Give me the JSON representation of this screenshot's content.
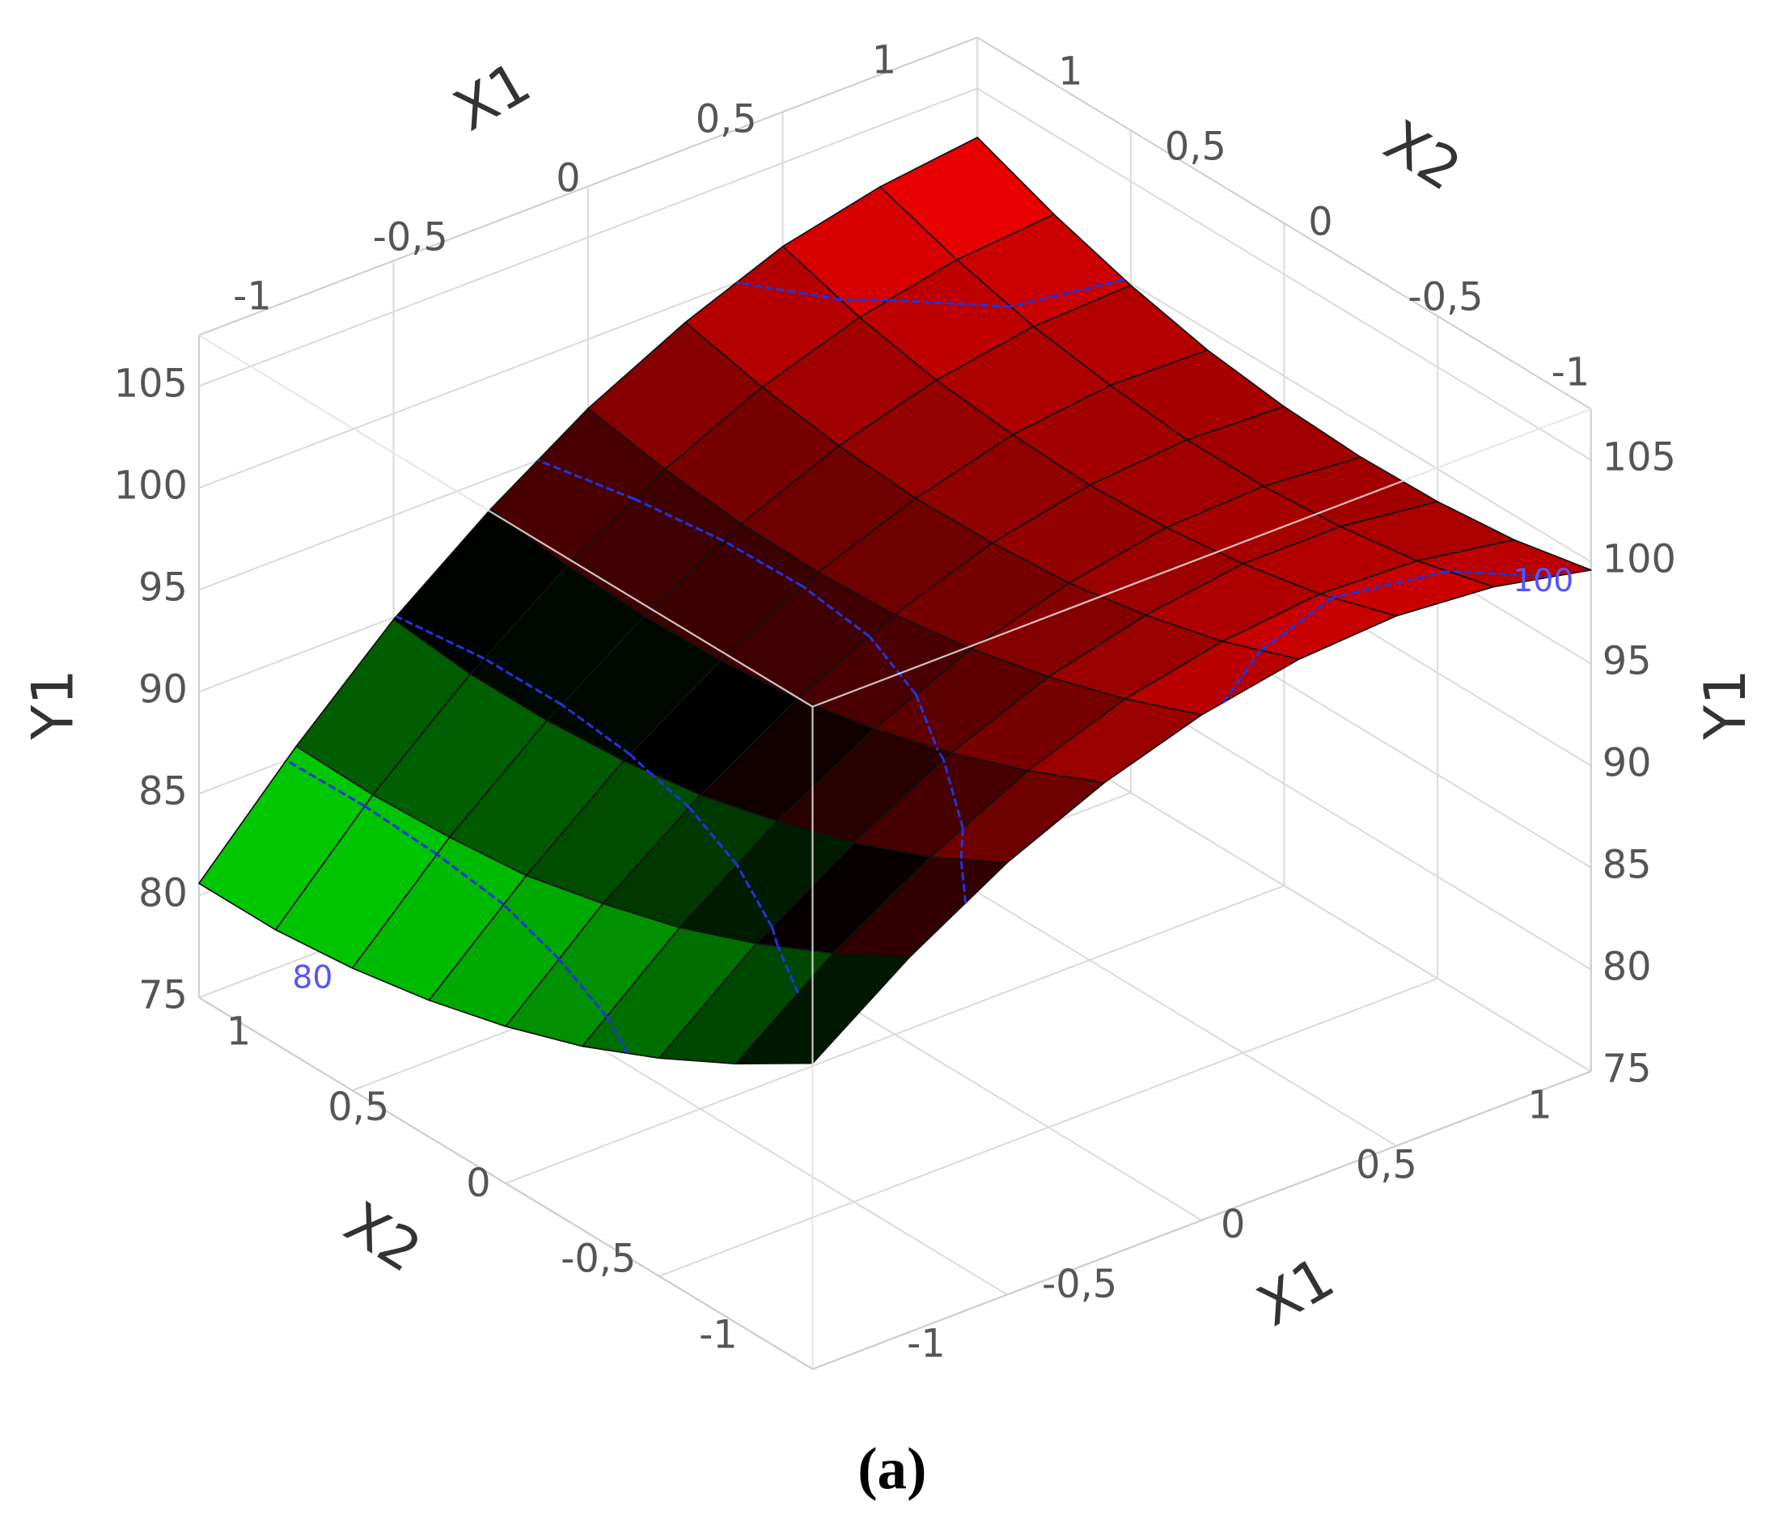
{
  "chart_data": {
    "type": "surface",
    "caption": "(a)",
    "x1_label": "X1",
    "x2_label": "X2",
    "z_label": "Y1",
    "x1": [
      -1,
      -0.75,
      -0.5,
      -0.25,
      0,
      0.25,
      0.5,
      0.75,
      1
    ],
    "x2": [
      -1,
      -0.75,
      -0.5,
      -0.25,
      0,
      0.25,
      0.5,
      0.75,
      1
    ],
    "z": [
      [
        90.0,
        93.4,
        96.2,
        98.3,
        99.8,
        100.7,
        101.0,
        100.6,
        99.6
      ],
      [
        87.7,
        91.3,
        94.2,
        96.6,
        98.3,
        99.3,
        99.8,
        99.6,
        98.8
      ],
      [
        85.7,
        89.5,
        92.6,
        95.2,
        97.1,
        98.3,
        99.0,
        99.0,
        98.4
      ],
      [
        84.0,
        88.0,
        91.4,
        94.1,
        96.2,
        97.6,
        98.5,
        98.7,
        98.3
      ],
      [
        82.7,
        86.9,
        90.4,
        93.3,
        95.6,
        97.3,
        98.3,
        98.7,
        98.5
      ],
      [
        81.7,
        86.0,
        89.8,
        92.9,
        95.4,
        97.2,
        98.5,
        99.1,
        99.0
      ],
      [
        81.0,
        85.6,
        89.5,
        92.8,
        95.5,
        97.5,
        98.9,
        99.7,
        99.9
      ],
      [
        80.6,
        85.4,
        89.5,
        93.0,
        95.9,
        98.1,
        99.7,
        100.7,
        101.1
      ],
      [
        80.6,
        85.5,
        89.9,
        93.5,
        96.6,
        99.0,
        100.9,
        102.0,
        102.6
      ]
    ],
    "x1lim": [
      -1,
      1
    ],
    "x2lim": [
      -1,
      1
    ],
    "zlim": [
      75,
      107.5
    ],
    "x1ticks": [
      -1,
      {
        "value": -0.5,
        "label": "-0,5"
      },
      0,
      {
        "value": 0.5,
        "label": "0,5"
      },
      1
    ],
    "x2ticks": [
      -1,
      {
        "value": -0.5,
        "label": "-0,5"
      },
      0,
      {
        "value": 0.5,
        "label": "0,5"
      },
      1
    ],
    "zticks": [
      75,
      80,
      85,
      90,
      95,
      100,
      105
    ],
    "colormap": [
      "#00ff00",
      "#000000",
      "#ff0000"
    ],
    "contour_levels": [
      80,
      85,
      90,
      95,
      100
    ],
    "contour_color": "#2233dd",
    "grid": true
  }
}
